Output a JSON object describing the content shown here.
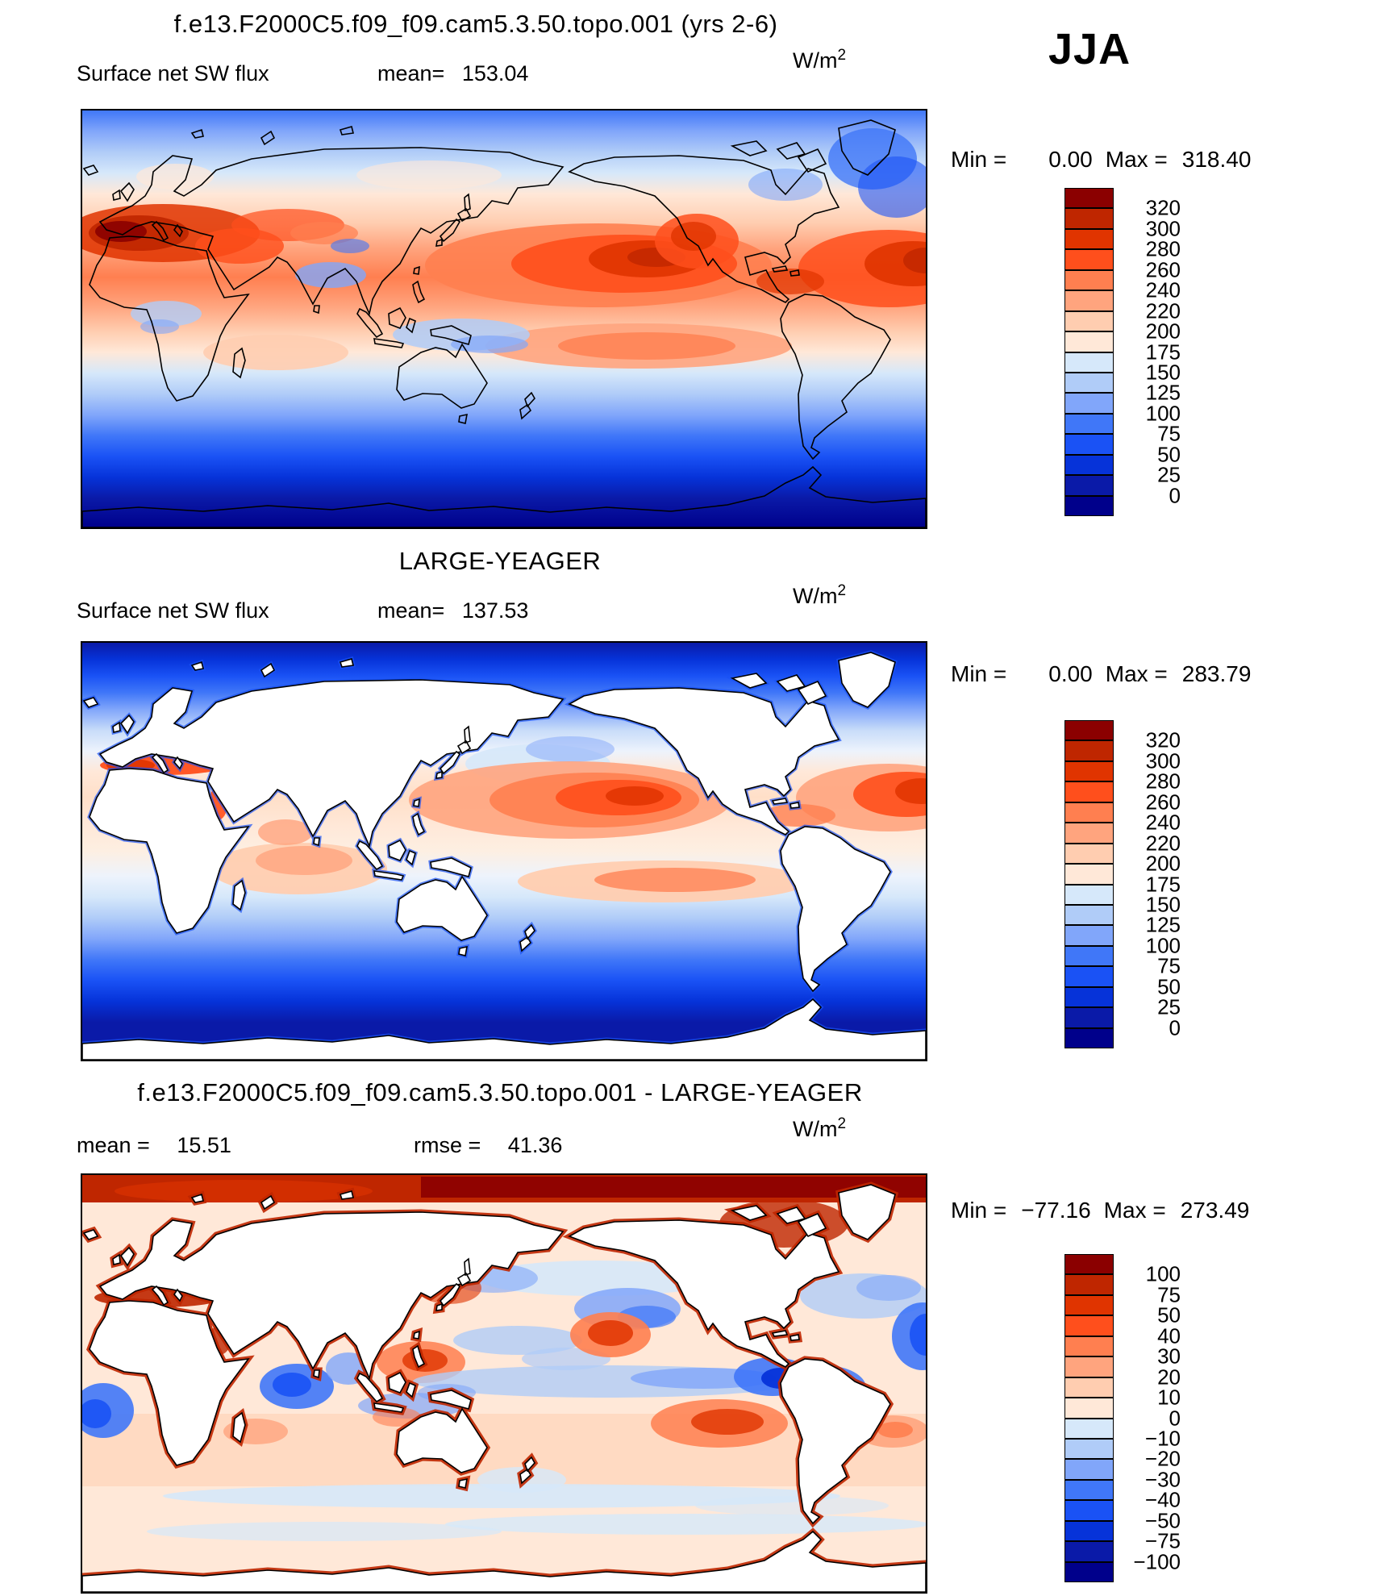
{
  "season": "JJA",
  "units": {
    "base": "W/m",
    "exp": "2"
  },
  "palette": {
    "colors": [
      "#8B0000",
      "#BF2600",
      "#E03400",
      "#FF4F1C",
      "#FF7F50",
      "#FFA47E",
      "#FFCDB0",
      "#FFE8D8",
      "#D6E8FA",
      "#B0CCF8",
      "#81A6FA",
      "#4077F8",
      "#1A52F5",
      "#0633D9",
      "#0A1AA8",
      "#00008B"
    ]
  },
  "panels": {
    "model": {
      "title": "f.e13.F2000C5.f09_f09.cam5.3.50.topo.001 (yrs 2-6)",
      "field": "Surface net SW flux",
      "mean_label": "mean=",
      "mean": "153.04",
      "min_label": "Min =",
      "min": "0.00",
      "max_label": "Max =",
      "max": "318.40",
      "colorbar_labels": [
        "320",
        "300",
        "280",
        "260",
        "240",
        "220",
        "200",
        "175",
        "150",
        "125",
        "100",
        "75",
        "50",
        "25",
        "0"
      ]
    },
    "obs": {
      "title": "LARGE-YEAGER",
      "field": "Surface net SW flux",
      "mean_label": "mean=",
      "mean": "137.53",
      "min_label": "Min =",
      "min": "0.00",
      "max_label": "Max =",
      "max": "283.79",
      "colorbar_labels": [
        "320",
        "300",
        "280",
        "260",
        "240",
        "220",
        "200",
        "175",
        "150",
        "125",
        "100",
        "75",
        "50",
        "25",
        "0"
      ]
    },
    "diff": {
      "title": "f.e13.F2000C5.f09_f09.cam5.3.50.topo.001 - LARGE-YEAGER",
      "mean_label": "mean =",
      "mean": "15.51",
      "rmse_label": "rmse =",
      "rmse": "41.36",
      "min_label": "Min =",
      "min": "−77.16",
      "max_label": "Max =",
      "max": "273.49",
      "colorbar_labels": [
        "100",
        "75",
        "50",
        "40",
        "30",
        "20",
        "10",
        "0",
        "−10",
        "−20",
        "−30",
        "−40",
        "−50",
        "−75",
        "−100"
      ]
    }
  },
  "chart_data": {
    "type": "heatmap",
    "subtype": "global contour maps, cylindrical equidistant, 3-panel model vs obs vs difference",
    "season": "JJA",
    "variable": "Surface net SW flux",
    "units": "W/m2",
    "legend_position": "right",
    "panels": [
      {
        "name": "f.e13.F2000C5.f09_f09.cam5.3.50.topo.001 (yrs 2-6)",
        "mean": 153.04,
        "min": 0.0,
        "max": 318.4,
        "contour_levels": [
          0,
          25,
          50,
          75,
          100,
          125,
          150,
          175,
          200,
          220,
          240,
          260,
          280,
          300,
          320
        ]
      },
      {
        "name": "LARGE-YEAGER",
        "mean": 137.53,
        "min": 0.0,
        "max": 283.79,
        "land_masked": true,
        "contour_levels": [
          0,
          25,
          50,
          75,
          100,
          125,
          150,
          175,
          200,
          220,
          240,
          260,
          280,
          300,
          320
        ]
      },
      {
        "name": "f.e13.F2000C5.f09_f09.cam5.3.50.topo.001 - LARGE-YEAGER",
        "mean": 15.51,
        "rmse": 41.36,
        "min": -77.16,
        "max": 273.49,
        "land_masked": true,
        "contour_levels": [
          -100,
          -75,
          -50,
          -40,
          -30,
          -20,
          -10,
          0,
          10,
          20,
          30,
          40,
          50,
          75,
          100
        ]
      }
    ]
  }
}
